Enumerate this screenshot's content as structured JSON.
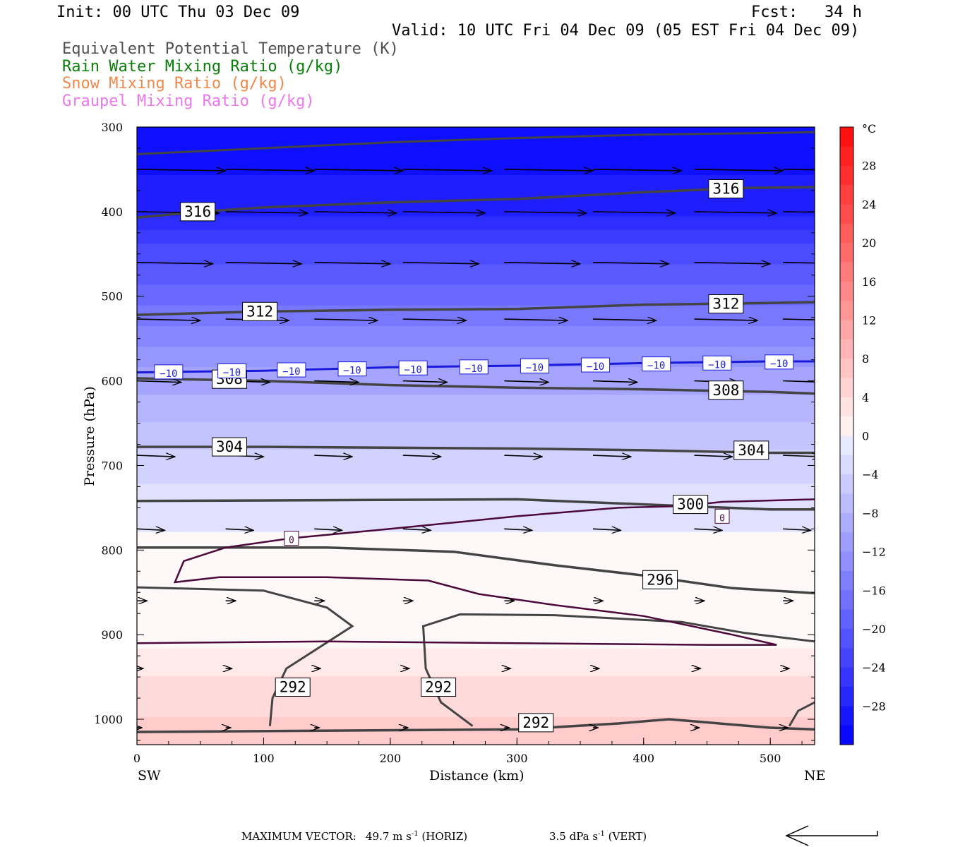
{
  "header": {
    "init": "Init: 00 UTC Thu 03 Dec 09",
    "fcst_label": "Fcst:",
    "fcst_value": "34 h",
    "valid": "Valid: 10 UTC Fri 04 Dec 09 (05 EST Fri 04 Dec 09)"
  },
  "legend": {
    "items": [
      {
        "label": "Equivalent Potential Temperature (K)",
        "color": "#505050"
      },
      {
        "label": "Rain Water Mixing Ratio (g/kg)",
        "color": "#0a7d0a"
      },
      {
        "label": "Snow Mixing Ratio (g/kg)",
        "color": "#f0874b"
      },
      {
        "label": "Graupel Mixing Ratio (g/kg)",
        "color": "#ec78ec"
      }
    ]
  },
  "footer": {
    "max_vector_label": "MAXIMUM VECTOR:",
    "horiz_value": "49.7 m s",
    "horiz_exp": "-1",
    "horiz_tag": "(HORIZ)",
    "vert_value": "3.5 dPa s",
    "vert_exp": "-1",
    "vert_tag": "(VERT)"
  },
  "chart_data": {
    "type": "heatmap",
    "title": "",
    "xlabel": "Distance (km)",
    "ylabel": "Pressure (hPa)",
    "x_ticks": [
      0,
      100,
      200,
      300,
      400,
      500
    ],
    "y_ticks": [
      300,
      400,
      500,
      600,
      700,
      800,
      900,
      1000
    ],
    "xlim": [
      0,
      535
    ],
    "ylim": [
      300,
      1030
    ],
    "y_inverted": true,
    "x_left_label": "SW",
    "x_right_label": "NE",
    "colorbar": {
      "unit": "°C",
      "tick_labels": [
        "28",
        "24",
        "20",
        "16",
        "12",
        "8",
        "4",
        "0",
        "−4",
        "−8",
        "−12",
        "−16",
        "−20",
        "−24",
        "−28"
      ],
      "tick_values": [
        28,
        24,
        20,
        16,
        12,
        8,
        4,
        0,
        -4,
        -8,
        -12,
        -16,
        -20,
        -24,
        -28
      ],
      "range": [
        -32,
        32
      ]
    },
    "theta_e_contours": [
      {
        "label": "316",
        "points": [
          [
            0,
            407
          ],
          [
            50,
            400
          ],
          [
            100,
            395
          ],
          [
            200,
            389
          ],
          [
            300,
            385
          ],
          [
            400,
            377
          ],
          [
            480,
            372
          ],
          [
            535,
            371
          ]
        ],
        "labels_at": [
          [
            48,
            400
          ],
          [
            465,
            373
          ]
        ]
      },
      {
        "label": "312",
        "points": [
          [
            0,
            522
          ],
          [
            100,
            518
          ],
          [
            200,
            516
          ],
          [
            300,
            515
          ],
          [
            400,
            510
          ],
          [
            500,
            508
          ],
          [
            535,
            507
          ]
        ],
        "labels_at": [
          [
            97,
            518
          ],
          [
            465,
            509
          ]
        ]
      },
      {
        "label": "308",
        "points": [
          [
            0,
            597
          ],
          [
            100,
            600
          ],
          [
            200,
            605
          ],
          [
            300,
            608
          ],
          [
            400,
            610
          ],
          [
            500,
            613
          ],
          [
            535,
            615
          ]
        ],
        "labels_at": [
          [
            73,
            598
          ],
          [
            465,
            611
          ]
        ]
      },
      {
        "label": "304",
        "points": [
          [
            0,
            678
          ],
          [
            100,
            678
          ],
          [
            200,
            679
          ],
          [
            300,
            680
          ],
          [
            400,
            682
          ],
          [
            500,
            685
          ],
          [
            535,
            685
          ]
        ],
        "labels_at": [
          [
            73,
            678
          ],
          [
            485,
            682
          ]
        ]
      },
      {
        "label": "300",
        "points": [
          [
            0,
            742
          ],
          [
            150,
            741
          ],
          [
            300,
            740
          ],
          [
            400,
            746
          ],
          [
            500,
            752
          ],
          [
            535,
            752
          ]
        ],
        "labels_at": [
          [
            437,
            746
          ]
        ]
      },
      {
        "label": "296",
        "points": [
          [
            0,
            797
          ],
          [
            150,
            797
          ],
          [
            250,
            802
          ],
          [
            330,
            818
          ],
          [
            400,
            830
          ],
          [
            470,
            845
          ],
          [
            535,
            851
          ]
        ],
        "labels_at": [
          [
            413,
            835
          ]
        ]
      },
      {
        "label": "292",
        "points": [
          [
            0,
            1015
          ],
          [
            300,
            1012
          ],
          [
            380,
            1005
          ],
          [
            420,
            1000
          ],
          [
            500,
            1010
          ],
          [
            535,
            1012
          ]
        ],
        "labels_at": [
          [
            123,
            962
          ],
          [
            238,
            962
          ],
          [
            315,
            1004
          ]
        ]
      }
    ],
    "isotherm_minus10": {
      "label": "−10",
      "points": [
        [
          0,
          590
        ],
        [
          100,
          588
        ],
        [
          200,
          584
        ],
        [
          300,
          582
        ],
        [
          400,
          579
        ],
        [
          500,
          577
        ],
        [
          535,
          577
        ]
      ]
    },
    "zero_isotherm": {
      "label": "0",
      "labels_at": [
        [
          122,
          786
        ],
        [
          462,
          760
        ]
      ]
    },
    "temperature_field_c": [
      {
        "p": 310,
        "t": -30
      },
      {
        "p": 400,
        "t": -28
      },
      {
        "p": 450,
        "t": -22
      },
      {
        "p": 500,
        "t": -18
      },
      {
        "p": 550,
        "t": -14
      },
      {
        "p": 600,
        "t": -10
      },
      {
        "p": 650,
        "t": -7
      },
      {
        "p": 700,
        "t": -4
      },
      {
        "p": 750,
        "t": -2
      },
      {
        "p": 800,
        "t": 0
      },
      {
        "p": 850,
        "t": -1
      },
      {
        "p": 900,
        "t": 0
      },
      {
        "p": 950,
        "t": 3
      },
      {
        "p": 1000,
        "t": 5
      }
    ],
    "wind_vectors": [
      {
        "p": 350,
        "x": [
          0,
          70,
          140,
          210,
          290,
          360,
          440,
          510
        ],
        "length_km": 70
      },
      {
        "p": 400,
        "x": [
          0,
          70,
          140,
          210,
          290,
          360,
          440,
          510
        ],
        "length_km": 65
      },
      {
        "p": 460,
        "x": [
          0,
          70,
          140,
          210,
          290,
          360,
          440,
          510
        ],
        "length_km": 60
      },
      {
        "p": 527,
        "x": [
          0,
          70,
          140,
          210,
          290,
          360,
          440,
          510
        ],
        "length_km": 50
      },
      {
        "p": 600,
        "x": [
          0,
          70,
          140,
          210,
          290,
          360,
          440,
          510
        ],
        "length_km": 35
      },
      {
        "p": 688,
        "x": [
          0,
          70,
          140,
          210,
          290,
          360,
          440,
          510
        ],
        "length_km": 30
      },
      {
        "p": 775,
        "x": [
          0,
          70,
          140,
          210,
          290,
          360,
          440,
          510
        ],
        "length_km": 22
      },
      {
        "p": 860,
        "x": [
          0,
          70,
          140,
          210,
          290,
          360,
          440,
          510
        ],
        "length_km": 8
      },
      {
        "p": 940,
        "x": [
          0,
          70,
          140,
          210,
          290,
          360,
          440,
          510
        ],
        "length_km": 5
      },
      {
        "p": 1010,
        "x": [
          0,
          70,
          140,
          210,
          290,
          360,
          440,
          510
        ],
        "length_km": 4
      }
    ]
  }
}
